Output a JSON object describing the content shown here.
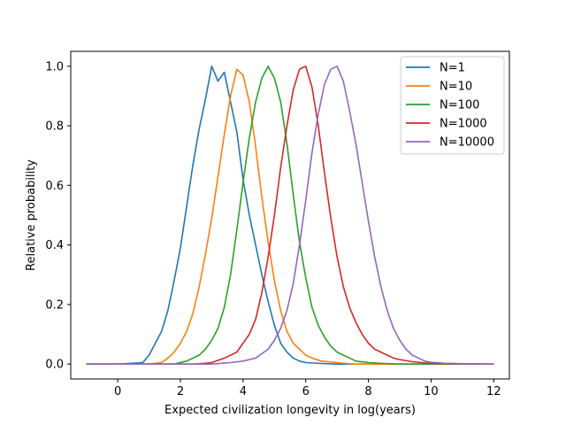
{
  "chart_data": {
    "type": "line",
    "title": "",
    "xlabel": "Expected civilization longevity in log(years)",
    "ylabel": "Relative probability",
    "xlim": [
      -1.5,
      12.5
    ],
    "ylim": [
      -0.05,
      1.05
    ],
    "xticks": [
      0,
      2,
      4,
      6,
      8,
      10,
      12
    ],
    "yticks": [
      0.0,
      0.2,
      0.4,
      0.6,
      0.8,
      1.0
    ],
    "xtick_labels": [
      "0",
      "2",
      "4",
      "6",
      "8",
      "10",
      "12"
    ],
    "ytick_labels": [
      "0.0",
      "0.2",
      "0.4",
      "0.6",
      "0.8",
      "1.0"
    ],
    "grid": false,
    "legend_position": "top-right",
    "series": [
      {
        "name": "N=1",
        "color": "#1f77b4",
        "x": [
          -1.0,
          0.0,
          0.8,
          1.0,
          1.2,
          1.4,
          1.6,
          1.8,
          2.0,
          2.2,
          2.4,
          2.6,
          2.8,
          3.0,
          3.2,
          3.4,
          3.6,
          3.8,
          4.0,
          4.2,
          4.4,
          4.6,
          4.8,
          5.0,
          5.2,
          5.4,
          5.6,
          5.8,
          6.0,
          6.5,
          7.0,
          12.0
        ],
        "y": [
          0.0,
          0.0,
          0.005,
          0.03,
          0.07,
          0.11,
          0.18,
          0.28,
          0.39,
          0.53,
          0.67,
          0.79,
          0.89,
          1.0,
          0.95,
          0.98,
          0.88,
          0.78,
          0.62,
          0.5,
          0.4,
          0.3,
          0.21,
          0.13,
          0.07,
          0.04,
          0.02,
          0.01,
          0.005,
          0.002,
          0.0,
          0.0
        ]
      },
      {
        "name": "N=10",
        "color": "#ff7f0e",
        "x": [
          -1.0,
          1.0,
          1.4,
          1.6,
          1.8,
          2.0,
          2.2,
          2.4,
          2.6,
          2.8,
          3.0,
          3.2,
          3.4,
          3.6,
          3.8,
          4.0,
          4.2,
          4.4,
          4.6,
          4.8,
          5.0,
          5.2,
          5.4,
          5.6,
          5.8,
          6.0,
          6.2,
          6.5,
          7.0,
          7.5,
          12.0
        ],
        "y": [
          0.0,
          0.0,
          0.005,
          0.02,
          0.04,
          0.07,
          0.11,
          0.17,
          0.26,
          0.37,
          0.49,
          0.63,
          0.77,
          0.9,
          0.99,
          0.97,
          0.88,
          0.73,
          0.56,
          0.41,
          0.28,
          0.18,
          0.11,
          0.07,
          0.05,
          0.03,
          0.02,
          0.01,
          0.005,
          0.0,
          0.0
        ]
      },
      {
        "name": "N=100",
        "color": "#2ca02c",
        "x": [
          -1.0,
          1.8,
          2.2,
          2.6,
          2.8,
          3.0,
          3.2,
          3.4,
          3.6,
          3.8,
          4.0,
          4.2,
          4.4,
          4.6,
          4.8,
          5.0,
          5.2,
          5.4,
          5.6,
          5.8,
          6.0,
          6.2,
          6.4,
          6.6,
          6.8,
          7.0,
          7.2,
          7.4,
          7.6,
          8.0,
          8.5,
          9.0,
          12.0
        ],
        "y": [
          0.0,
          0.0,
          0.01,
          0.03,
          0.05,
          0.08,
          0.12,
          0.19,
          0.3,
          0.45,
          0.61,
          0.76,
          0.88,
          0.96,
          1.0,
          0.96,
          0.88,
          0.74,
          0.57,
          0.41,
          0.29,
          0.19,
          0.13,
          0.09,
          0.06,
          0.04,
          0.03,
          0.02,
          0.01,
          0.005,
          0.002,
          0.0,
          0.0
        ]
      },
      {
        "name": "N=1000",
        "color": "#d62728",
        "x": [
          -1.0,
          2.5,
          3.0,
          3.4,
          3.6,
          3.8,
          4.0,
          4.2,
          4.4,
          4.6,
          4.8,
          5.0,
          5.2,
          5.4,
          5.6,
          5.8,
          6.0,
          6.2,
          6.4,
          6.6,
          6.8,
          7.0,
          7.2,
          7.4,
          7.6,
          7.8,
          8.0,
          8.2,
          8.4,
          8.6,
          8.8,
          9.0,
          9.4,
          10.0,
          12.0
        ],
        "y": [
          0.0,
          0.0,
          0.005,
          0.02,
          0.03,
          0.04,
          0.07,
          0.1,
          0.15,
          0.24,
          0.36,
          0.5,
          0.66,
          0.8,
          0.92,
          0.99,
          1.0,
          0.93,
          0.8,
          0.64,
          0.49,
          0.36,
          0.26,
          0.19,
          0.14,
          0.1,
          0.07,
          0.05,
          0.04,
          0.03,
          0.02,
          0.015,
          0.008,
          0.002,
          0.0
        ]
      },
      {
        "name": "N=10000",
        "color": "#9467bd",
        "x": [
          -1.0,
          3.0,
          3.6,
          4.0,
          4.4,
          4.8,
          5.0,
          5.2,
          5.4,
          5.6,
          5.8,
          6.0,
          6.2,
          6.4,
          6.6,
          6.8,
          7.0,
          7.2,
          7.4,
          7.6,
          7.8,
          8.0,
          8.2,
          8.4,
          8.6,
          8.8,
          9.0,
          9.2,
          9.4,
          9.6,
          9.8,
          10.0,
          10.4,
          11.0,
          12.0
        ],
        "y": [
          0.0,
          0.0,
          0.005,
          0.01,
          0.02,
          0.05,
          0.08,
          0.12,
          0.18,
          0.27,
          0.4,
          0.55,
          0.71,
          0.84,
          0.94,
          0.99,
          1.0,
          0.95,
          0.85,
          0.74,
          0.61,
          0.48,
          0.36,
          0.26,
          0.18,
          0.12,
          0.08,
          0.05,
          0.03,
          0.02,
          0.01,
          0.006,
          0.003,
          0.001,
          0.0
        ]
      }
    ]
  }
}
